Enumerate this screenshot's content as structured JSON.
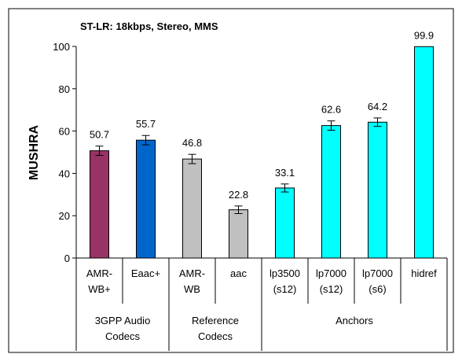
{
  "chart_data": {
    "type": "bar",
    "title": "ST-LR:  18kbps, Stereo, MMS",
    "ylabel": "MUSHRA",
    "ylim": [
      0,
      100
    ],
    "yticks": [
      0,
      20,
      40,
      60,
      80,
      100
    ],
    "grid": false,
    "categories": [
      [
        "AMR-",
        "WB+"
      ],
      [
        "Eaac+"
      ],
      [
        "AMR-",
        "WB"
      ],
      [
        "aac"
      ],
      [
        "lp3500",
        "(s12)"
      ],
      [
        "lp7000",
        "(s12)"
      ],
      [
        "lp7000",
        "(s6)"
      ],
      [
        "hidref"
      ]
    ],
    "values": [
      50.7,
      55.7,
      46.8,
      22.8,
      33.1,
      62.6,
      64.2,
      99.9
    ],
    "value_labels": [
      "50.7",
      "55.7",
      "46.8",
      "22.8",
      "33.1",
      "62.6",
      "64.2",
      "99.9"
    ],
    "error": [
      2.2,
      2.2,
      2.2,
      1.8,
      1.9,
      2.2,
      2.0,
      0
    ],
    "colors": [
      "#993366",
      "#0066cc",
      "#c0c0c0",
      "#c0c0c0",
      "#00ffff",
      "#00ffff",
      "#00ffff",
      "#00ffff"
    ],
    "groups": [
      {
        "label": [
          "3GPP Audio",
          "Codecs"
        ],
        "span": 2
      },
      {
        "label": [
          "Reference",
          "Codecs"
        ],
        "span": 2
      },
      {
        "label": [
          "Anchors"
        ],
        "span": 4
      }
    ]
  }
}
